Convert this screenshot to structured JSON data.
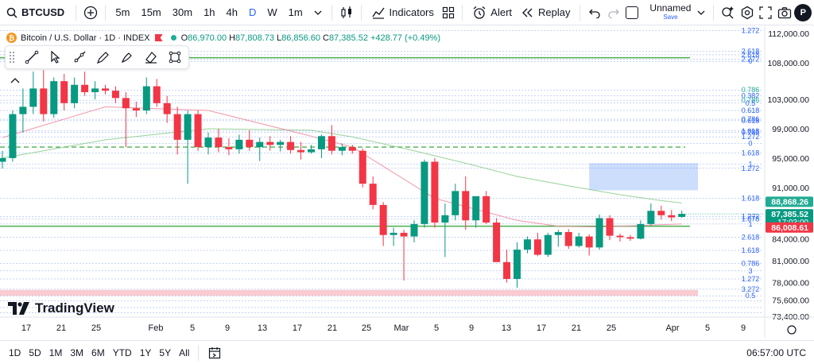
{
  "toolbar": {
    "symbol": "BTCUSD",
    "timeframes": [
      "5m",
      "15m",
      "30m",
      "1h",
      "4h",
      "D",
      "W",
      "1m"
    ],
    "active_timeframe": "D",
    "indicators_label": "Indicators",
    "alert_label": "Alert",
    "replay_label": "Replay",
    "layout_name": "Unnamed",
    "layout_status": "Save",
    "avatar_letter": "P"
  },
  "legend": {
    "title": "Bitcoin / U.S. Dollar · 1D · INDEX",
    "open_label": "O",
    "open": "86,970.00",
    "high_label": "H",
    "high": "87,808.73",
    "low_label": "L",
    "low": "86,856.60",
    "close_label": "C",
    "close": "87,385.52",
    "change": "+428.77 (+0.49%)"
  },
  "watermark": "TradingView",
  "colors": {
    "up": "#089981",
    "down": "#f23645",
    "accent": "#2962ff",
    "fib": "#2962ff",
    "green_line": "#22ab94",
    "zone_blue": "#bbd3fb",
    "zone_red": "#fac6cc"
  },
  "price_axis": {
    "labels": [
      "112,000.00",
      "108,000.00",
      "103,000.00",
      "99,000.00",
      "95,000.00",
      "91,000.00",
      "84,000.00",
      "81,000.00",
      "78,000.00",
      "75,600.00",
      "73,400.00"
    ],
    "tags": [
      {
        "value": "88,868.26",
        "color": "#22ab94"
      },
      {
        "value": "87,385.52",
        "sub": "17:03:00",
        "color": "#089981"
      },
      {
        "value": "86,008.61",
        "color": "#f23645"
      }
    ]
  },
  "fib_labels": [
    "1.272",
    "2.618",
    "2.618",
    "2.272",
    "0",
    "0.786",
    "0.382",
    "0.786",
    "0.5",
    "0.618",
    "0.786",
    "0.618",
    "1.618",
    "0.786",
    "1.272",
    "0",
    "1.618",
    "1",
    "1.272",
    "1.618",
    "1.272",
    "1.878",
    "1",
    "2.618",
    "1.618",
    "0.786",
    "3",
    "1.272",
    "3.272",
    "0.5"
  ],
  "time_axis": {
    "labels": [
      {
        "text": "17"
      },
      {
        "text": "21"
      },
      {
        "text": "25"
      },
      {
        "text": "Feb"
      },
      {
        "text": "5"
      },
      {
        "text": "9"
      },
      {
        "text": "13"
      },
      {
        "text": "17"
      },
      {
        "text": "21"
      },
      {
        "text": "25"
      },
      {
        "text": "Mar"
      },
      {
        "text": "5"
      },
      {
        "text": "9"
      },
      {
        "text": "13"
      },
      {
        "text": "17"
      },
      {
        "text": "21"
      },
      {
        "text": "25"
      },
      {
        "text": "Apr"
      },
      {
        "text": "5"
      },
      {
        "text": "9"
      }
    ]
  },
  "bottom": {
    "ranges": [
      "1D",
      "5D",
      "1M",
      "3M",
      "6M",
      "YTD",
      "1Y",
      "5Y",
      "All"
    ],
    "clock": "06:57:00 UTC"
  },
  "chart_data": {
    "type": "candlestick",
    "title": "Bitcoin / U.S. Dollar · 1D · INDEX",
    "ylim": [
      73400,
      113000
    ],
    "candles": [
      {
        "o": 94500,
        "h": 96000,
        "l": 93600,
        "c": 95000
      },
      {
        "o": 95000,
        "h": 101500,
        "l": 94500,
        "c": 101000
      },
      {
        "o": 101000,
        "h": 104500,
        "l": 98500,
        "c": 102000
      },
      {
        "o": 102000,
        "h": 106800,
        "l": 101000,
        "c": 104500
      },
      {
        "o": 104500,
        "h": 107000,
        "l": 100000,
        "c": 101000
      },
      {
        "o": 101000,
        "h": 106000,
        "l": 100500,
        "c": 105500
      },
      {
        "o": 105500,
        "h": 106500,
        "l": 101500,
        "c": 102500
      },
      {
        "o": 102500,
        "h": 106000,
        "l": 101800,
        "c": 105000
      },
      {
        "o": 105000,
        "h": 106800,
        "l": 103500,
        "c": 104000
      },
      {
        "o": 104000,
        "h": 105500,
        "l": 103000,
        "c": 104500
      },
      {
        "o": 104500,
        "h": 105000,
        "l": 103700,
        "c": 104200
      },
      {
        "o": 104200,
        "h": 104800,
        "l": 102500,
        "c": 103200
      },
      {
        "o": 103200,
        "h": 104000,
        "l": 96500,
        "c": 101800
      },
      {
        "o": 101800,
        "h": 102700,
        "l": 100600,
        "c": 101500
      },
      {
        "o": 101500,
        "h": 106000,
        "l": 101000,
        "c": 104800
      },
      {
        "o": 104800,
        "h": 105800,
        "l": 102000,
        "c": 102500
      },
      {
        "o": 102500,
        "h": 103500,
        "l": 99800,
        "c": 101000
      },
      {
        "o": 101000,
        "h": 102000,
        "l": 95500,
        "c": 97500
      },
      {
        "o": 97500,
        "h": 101500,
        "l": 91500,
        "c": 101000
      },
      {
        "o": 101000,
        "h": 101500,
        "l": 96000,
        "c": 96500
      },
      {
        "o": 96500,
        "h": 98500,
        "l": 95500,
        "c": 97800
      },
      {
        "o": 97800,
        "h": 99000,
        "l": 95800,
        "c": 96500
      },
      {
        "o": 96500,
        "h": 97700,
        "l": 95400,
        "c": 96200
      },
      {
        "o": 96200,
        "h": 98200,
        "l": 95600,
        "c": 97500
      },
      {
        "o": 97500,
        "h": 98800,
        "l": 96000,
        "c": 96500
      },
      {
        "o": 96500,
        "h": 97800,
        "l": 94600,
        "c": 97200
      },
      {
        "o": 97200,
        "h": 98000,
        "l": 96000,
        "c": 96800
      },
      {
        "o": 96800,
        "h": 97500,
        "l": 95900,
        "c": 97200
      },
      {
        "o": 97200,
        "h": 98000,
        "l": 95600,
        "c": 96100
      },
      {
        "o": 96100,
        "h": 97200,
        "l": 94800,
        "c": 95800
      },
      {
        "o": 95800,
        "h": 96800,
        "l": 95600,
        "c": 96200
      },
      {
        "o": 96200,
        "h": 98200,
        "l": 95000,
        "c": 98000
      },
      {
        "o": 98000,
        "h": 99500,
        "l": 95500,
        "c": 96000
      },
      {
        "o": 96000,
        "h": 97000,
        "l": 95400,
        "c": 96500
      },
      {
        "o": 96500,
        "h": 96800,
        "l": 95600,
        "c": 96000
      },
      {
        "o": 96000,
        "h": 96300,
        "l": 91000,
        "c": 91500
      },
      {
        "o": 91500,
        "h": 92500,
        "l": 88000,
        "c": 88600
      },
      {
        "o": 88600,
        "h": 89000,
        "l": 83000,
        "c": 84500
      },
      {
        "o": 84500,
        "h": 85500,
        "l": 83000,
        "c": 84800
      },
      {
        "o": 84800,
        "h": 85200,
        "l": 78300,
        "c": 84300
      },
      {
        "o": 84300,
        "h": 86500,
        "l": 83500,
        "c": 86000
      },
      {
        "o": 86000,
        "h": 94800,
        "l": 85500,
        "c": 94500
      },
      {
        "o": 94500,
        "h": 95000,
        "l": 85500,
        "c": 86200
      },
      {
        "o": 86200,
        "h": 88800,
        "l": 81500,
        "c": 87200
      },
      {
        "o": 87200,
        "h": 91500,
        "l": 86500,
        "c": 90500
      },
      {
        "o": 90500,
        "h": 92500,
        "l": 85200,
        "c": 86500
      },
      {
        "o": 86500,
        "h": 89500,
        "l": 85500,
        "c": 89800
      },
      {
        "o": 89800,
        "h": 90500,
        "l": 86000,
        "c": 86200
      },
      {
        "o": 86200,
        "h": 86800,
        "l": 81000,
        "c": 80800
      },
      {
        "o": 80800,
        "h": 82500,
        "l": 78000,
        "c": 78500
      },
      {
        "o": 78500,
        "h": 83500,
        "l": 77300,
        "c": 82500
      },
      {
        "o": 82500,
        "h": 84300,
        "l": 82000,
        "c": 83900
      },
      {
        "o": 83900,
        "h": 84800,
        "l": 81600,
        "c": 81800
      },
      {
        "o": 81800,
        "h": 84800,
        "l": 81500,
        "c": 84500
      },
      {
        "o": 84500,
        "h": 85200,
        "l": 82900,
        "c": 84900
      },
      {
        "o": 84900,
        "h": 85300,
        "l": 82600,
        "c": 83000
      },
      {
        "o": 83000,
        "h": 84800,
        "l": 82800,
        "c": 84300
      },
      {
        "o": 84300,
        "h": 84600,
        "l": 81700,
        "c": 82800
      },
      {
        "o": 82800,
        "h": 87300,
        "l": 82500,
        "c": 86800
      },
      {
        "o": 86800,
        "h": 87200,
        "l": 83800,
        "c": 84400
      },
      {
        "o": 84400,
        "h": 84700,
        "l": 83600,
        "c": 84200
      },
      {
        "o": 84200,
        "h": 84500,
        "l": 83700,
        "c": 84000
      },
      {
        "o": 84000,
        "h": 86500,
        "l": 83900,
        "c": 86000
      },
      {
        "o": 86000,
        "h": 88800,
        "l": 85800,
        "c": 87800
      },
      {
        "o": 87800,
        "h": 88500,
        "l": 86600,
        "c": 87200
      },
      {
        "o": 87200,
        "h": 87900,
        "l": 86400,
        "c": 86900
      },
      {
        "o": 86970,
        "h": 87808.73,
        "l": 86856.6,
        "c": 87385.52
      }
    ],
    "ma_slow": [
      [
        0,
        95000
      ],
      [
        10,
        97500
      ],
      [
        20,
        99000
      ],
      [
        30,
        98800
      ],
      [
        34,
        97900
      ],
      [
        40,
        96000
      ],
      [
        45,
        94300
      ],
      [
        50,
        92500
      ],
      [
        55,
        91200
      ],
      [
        60,
        90000
      ],
      [
        64,
        89200
      ],
      [
        66,
        88868.26
      ]
    ],
    "ma_fast": [
      [
        0,
        97800
      ],
      [
        10,
        102000
      ],
      [
        20,
        101500
      ],
      [
        30,
        98000
      ],
      [
        34,
        96500
      ],
      [
        38,
        93000
      ],
      [
        42,
        89500
      ],
      [
        46,
        88000
      ],
      [
        50,
        86500
      ],
      [
        54,
        85700
      ],
      [
        58,
        85600
      ],
      [
        62,
        85800
      ],
      [
        66,
        86008.61
      ]
    ],
    "horizontal_lines": [
      {
        "price": 108700,
        "style": "solid"
      },
      {
        "price": 96500,
        "style": "dashed"
      },
      {
        "price": 85700,
        "style": "solid"
      }
    ],
    "zones": [
      {
        "from_index": 57,
        "to_index": 70,
        "top": 94300,
        "bottom": 90600
      },
      {
        "from_index": 0,
        "to_index": 70,
        "top": 77000,
        "bottom": 76200
      }
    ],
    "fib_levels": [
      112400,
      109600,
      109100,
      108500,
      108200,
      104300,
      103500,
      102900,
      102500,
      101500,
      100300,
      100100,
      98700,
      98500,
      97900,
      97000,
      95700,
      94200,
      93600,
      89500,
      87000,
      86700,
      86000,
      84200,
      82400,
      80600,
      79600,
      78500,
      77100,
      76200,
      75500,
      74600,
      73900
    ]
  }
}
